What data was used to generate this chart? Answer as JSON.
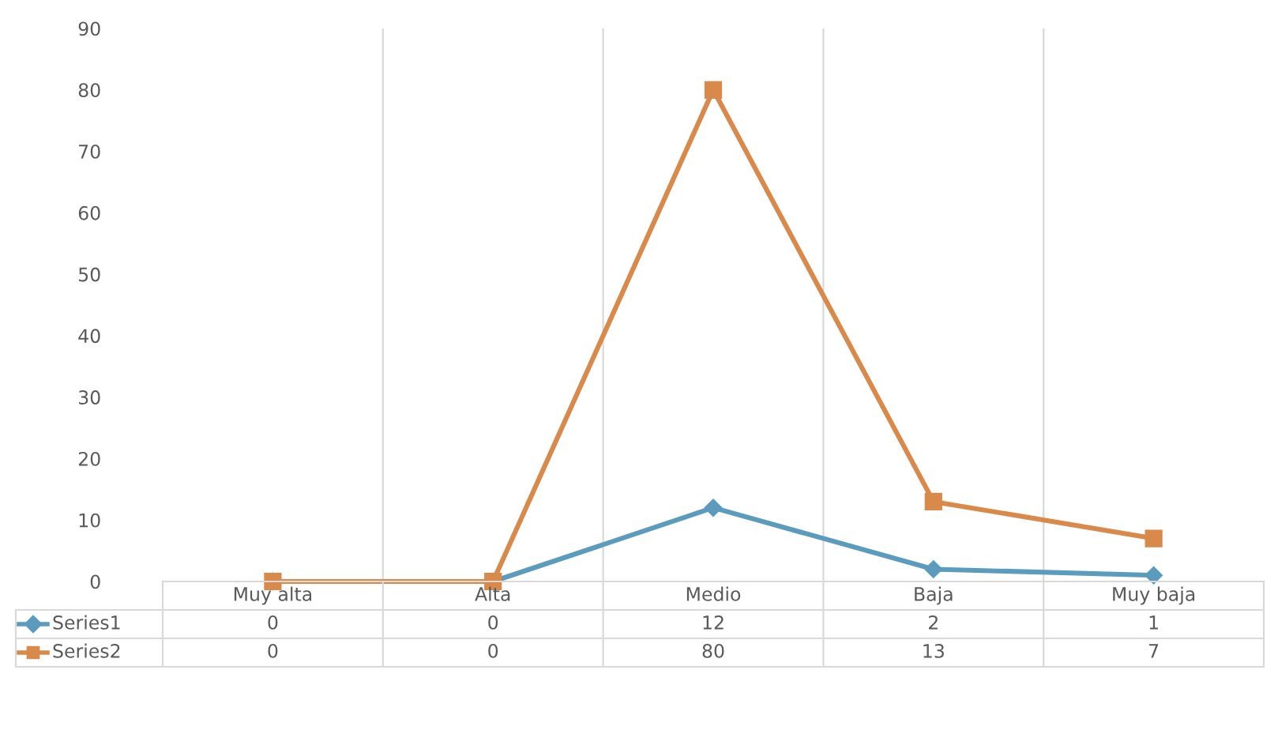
{
  "chart_data": {
    "type": "line",
    "categories": [
      "Muy alta",
      "Alta",
      "Medio",
      "Baja",
      "Muy baja"
    ],
    "series": [
      {
        "name": "Series1",
        "color": "#5b9bbd",
        "marker": "diamond",
        "values": [
          0,
          0,
          12,
          2,
          1
        ]
      },
      {
        "name": "Series2",
        "color": "#d9894a",
        "marker": "square",
        "values": [
          0,
          0,
          80,
          13,
          7
        ]
      }
    ],
    "ylim": [
      0,
      90
    ],
    "yticks": [
      0,
      10,
      20,
      30,
      40,
      50,
      60,
      70,
      80,
      90
    ],
    "grid": "x",
    "data_labels": true,
    "legend": "bottom"
  }
}
